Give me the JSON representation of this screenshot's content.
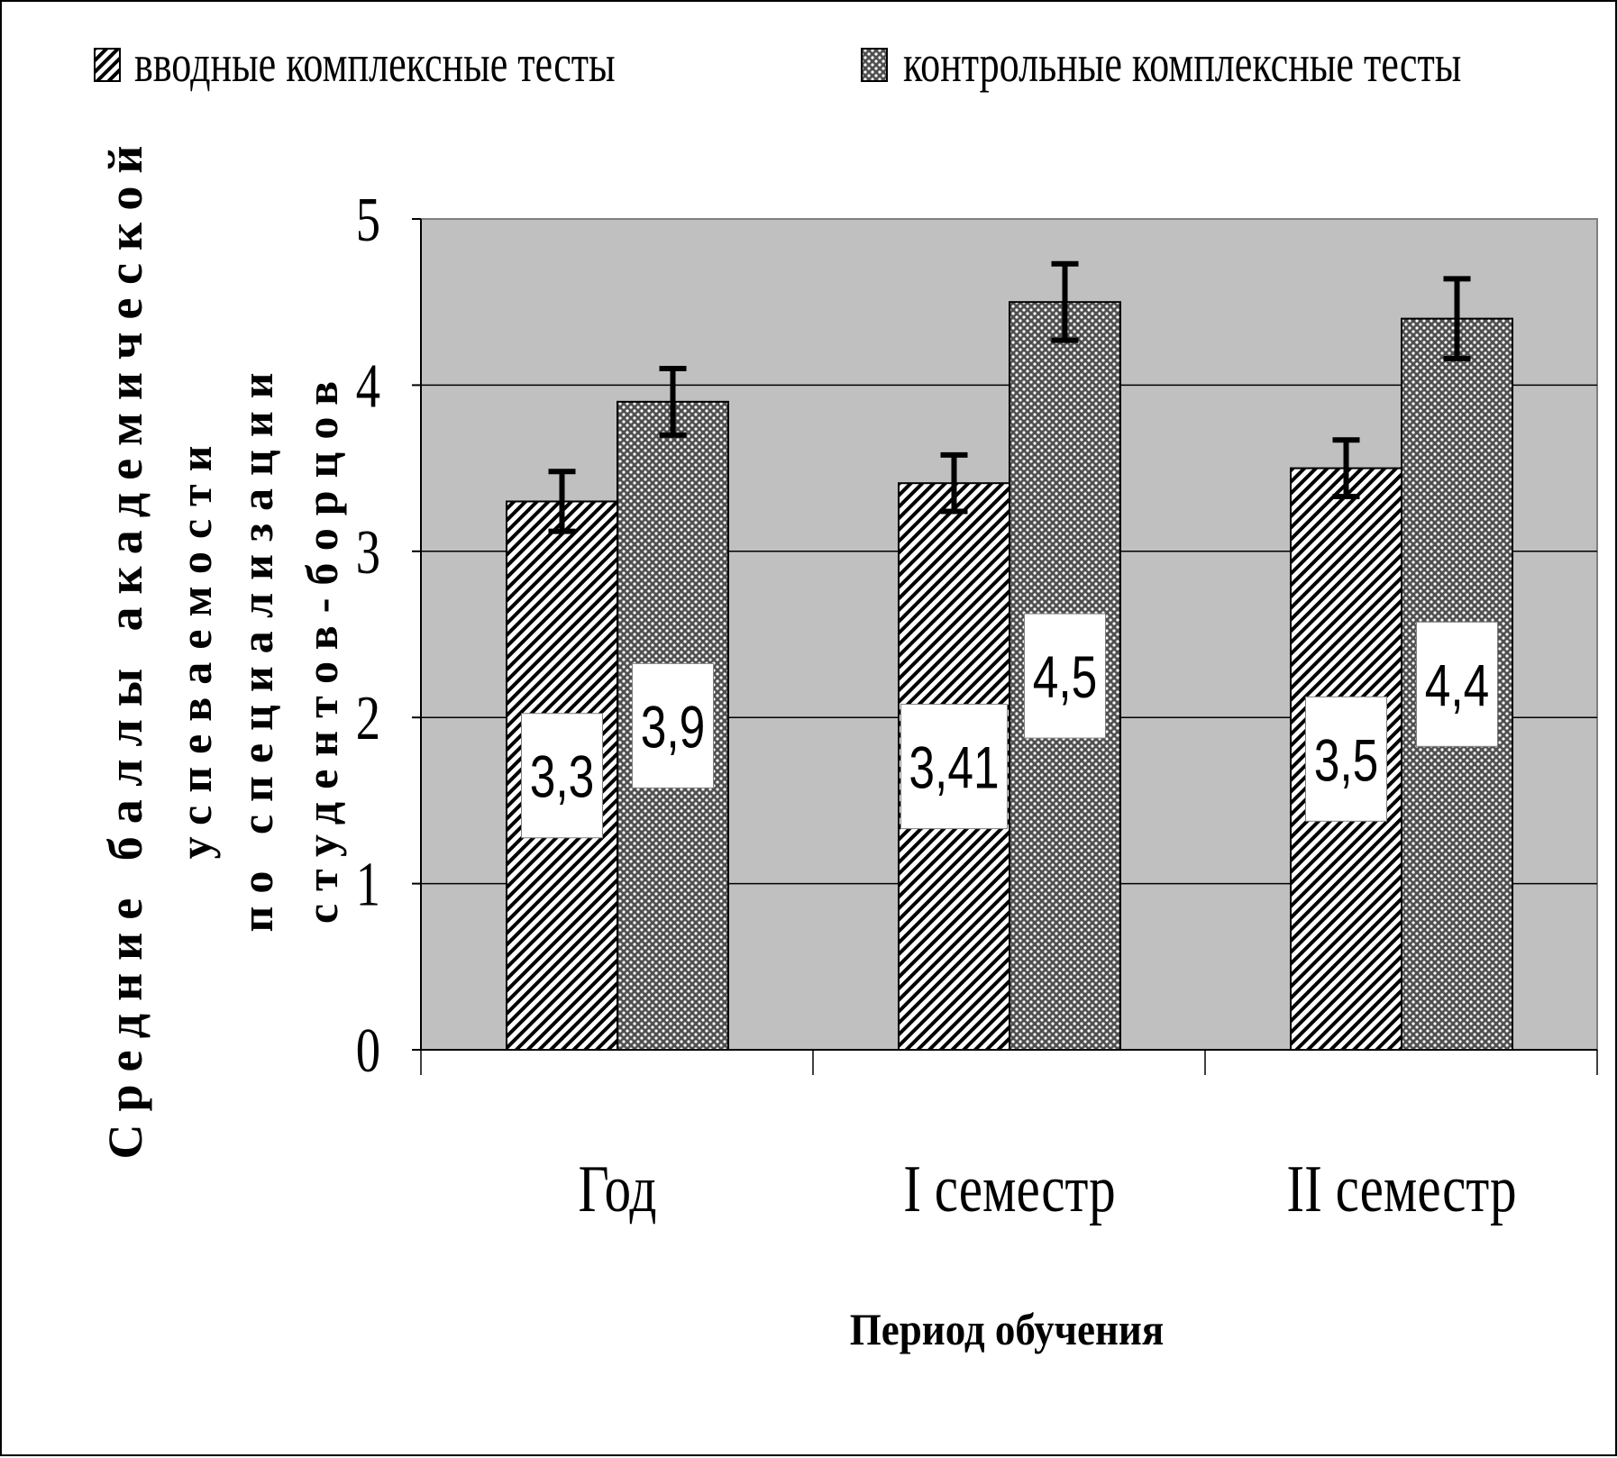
{
  "chart_data": {
    "type": "bar",
    "title": "",
    "xlabel": "Период обучения",
    "ylabel_lines": [
      "Средние баллы академической",
      "успеваемости",
      "по специализации",
      "студентов-борцов"
    ],
    "categories": [
      "Год",
      "I семестр",
      "II семестр"
    ],
    "series": [
      {
        "name": "вводные комплексные тесты",
        "pattern": "diagonal-hatch",
        "values": [
          3.3,
          3.41,
          3.5
        ],
        "labels": [
          "3,3",
          "3,41",
          "3,5"
        ],
        "error": [
          0.18,
          0.17,
          0.17
        ]
      },
      {
        "name": "контрольные комплексные тесты",
        "pattern": "checker-dots",
        "values": [
          3.9,
          4.5,
          4.4
        ],
        "labels": [
          "3,9",
          "4,5",
          "4,4"
        ],
        "error": [
          0.2,
          0.23,
          0.24
        ]
      }
    ],
    "ylim": [
      0,
      5
    ],
    "yticks": [
      "0",
      "1",
      "2",
      "3",
      "4",
      "5"
    ],
    "grid": true,
    "legend_position": "top",
    "colors": {
      "plot_background": "#c0c0c0",
      "bar_edge": "#000000",
      "gridline": "#000000"
    }
  }
}
